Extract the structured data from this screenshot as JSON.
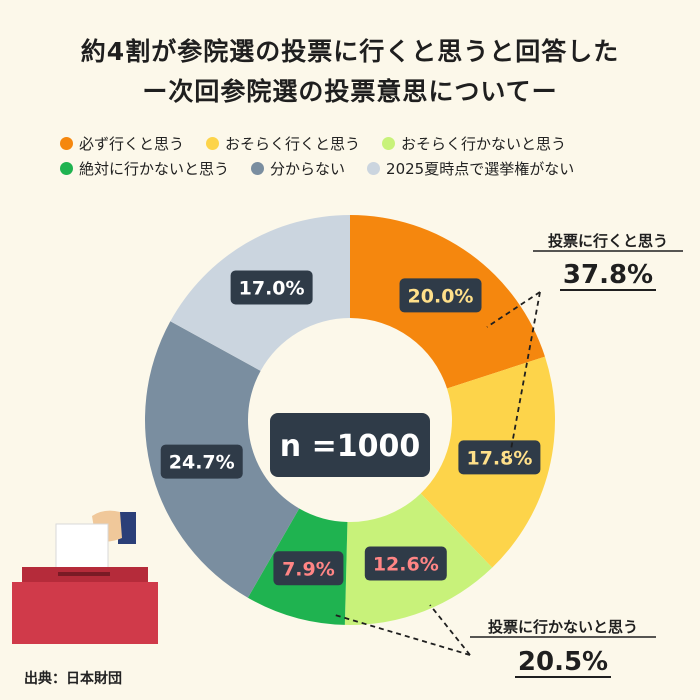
{
  "title": "約4割が参院選の投票に行くと思うと回答した",
  "subtitle": "ー次回参院選の投票意思についてー",
  "source": "出典：日本財団",
  "center_label": "n =1000",
  "colors": {
    "background": "#fcf8ea",
    "label_box": "#2f3b48",
    "ballot_box": "#d03a4a"
  },
  "annotations": [
    {
      "label": "投票に行くと思う",
      "value": "37.8%"
    },
    {
      "label": "投票に行かないと思う",
      "value": "20.5%"
    }
  ],
  "chart_data": {
    "type": "pie",
    "donut": true,
    "title": "約4割が参院選の投票に行くと思うと回答した",
    "subtitle": "ー次回参院選の投票意思についてー",
    "legend_position": "top",
    "categories": [
      "必ず行くと思う",
      "おそらく行くと思う",
      "おそらく行かないと思う",
      "絶対に行かないと思う",
      "分からない",
      "2025夏時点で選挙権がない"
    ],
    "values": [
      20.0,
      17.8,
      12.6,
      7.9,
      24.7,
      17.0
    ],
    "labels": [
      "20.0%",
      "17.8%",
      "12.6%",
      "7.9%",
      "24.7%",
      "17.0%"
    ],
    "colors": [
      "#f5870e",
      "#fdd44a",
      "#c8f27a",
      "#1fb350",
      "#7a8ea0",
      "#cbd5df"
    ],
    "label_colors": [
      "#ffe08a",
      "#ffe08a",
      "#ff8585",
      "#ff8585",
      "#ffffff",
      "#ffffff"
    ]
  }
}
